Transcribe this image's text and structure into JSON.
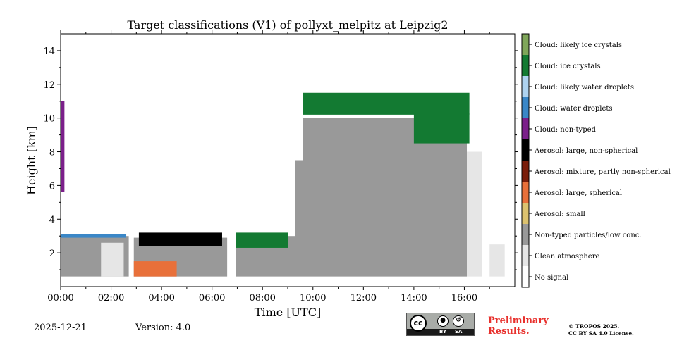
{
  "chart_data": {
    "type": "heatmap",
    "title": "Target classifications (V1) of pollyxt_melpitz at Leipzig2",
    "xlabel": "Time [UTC]",
    "ylabel": "Height [km]",
    "xlim": [
      0,
      18
    ],
    "ylim": [
      0,
      15
    ],
    "x_ticks": [
      0,
      2,
      4,
      6,
      8,
      10,
      12,
      14,
      16
    ],
    "x_tick_labels": [
      "00:00",
      "02:00",
      "04:00",
      "06:00",
      "08:00",
      "10:00",
      "12:00",
      "14:00",
      "16:00"
    ],
    "y_ticks": [
      2,
      4,
      6,
      8,
      10,
      12,
      14
    ],
    "y_tick_labels": [
      "2",
      "4",
      "6",
      "8",
      "10",
      "12",
      "14"
    ],
    "classes": [
      {
        "name": "Cloud: likely ice crystals",
        "color": "#7fa65a"
      },
      {
        "name": "Cloud: ice crystals",
        "color": "#137a32"
      },
      {
        "name": "Cloud: likely water droplets",
        "color": "#aed3f0"
      },
      {
        "name": "Cloud: water droplets",
        "color": "#3a87c7"
      },
      {
        "name": "Cloud: non-typed",
        "color": "#7b1f8a"
      },
      {
        "name": "Aerosol: large, non-spherical",
        "color": "#000000"
      },
      {
        "name": "Aerosol: mixture, partly non-spherical",
        "color": "#7a1d0a"
      },
      {
        "name": "Aerosol: large, spherical",
        "color": "#e8703a"
      },
      {
        "name": "Aerosol: small",
        "color": "#dcc26f"
      },
      {
        "name": "Non-typed particles/low conc.",
        "color": "#999999"
      },
      {
        "name": "Clean atmosphere",
        "color": "#e6e6e6"
      },
      {
        "name": "No signal",
        "color": "#ffffff"
      }
    ],
    "regions": [
      {
        "class": "Non-typed particles/low conc.",
        "t0": 0.0,
        "t1": 2.7,
        "h0": 0.6,
        "h1": 3.0
      },
      {
        "class": "Clean atmosphere",
        "t0": 1.6,
        "t1": 2.5,
        "h0": 0.6,
        "h1": 2.6
      },
      {
        "class": "Non-typed particles/low conc.",
        "t0": 2.9,
        "t1": 6.6,
        "h0": 0.6,
        "h1": 2.9
      },
      {
        "class": "Non-typed particles/low conc.",
        "t0": 6.95,
        "t1": 9.3,
        "h0": 0.6,
        "h1": 3.0
      },
      {
        "class": "Non-typed particles/low conc.",
        "t0": 9.3,
        "t1": 16.1,
        "h0": 0.6,
        "h1": 7.5
      },
      {
        "class": "Non-typed particles/low conc.",
        "t0": 9.6,
        "t1": 16.1,
        "h0": 7.5,
        "h1": 10.0
      },
      {
        "class": "Clean atmosphere",
        "t0": 16.1,
        "t1": 16.7,
        "h0": 0.6,
        "h1": 8.0
      },
      {
        "class": "Clean atmosphere",
        "t0": 17.0,
        "t1": 17.6,
        "h0": 0.6,
        "h1": 2.5
      },
      {
        "class": "Cloud: ice crystals",
        "t0": 9.6,
        "t1": 16.2,
        "h0": 10.2,
        "h1": 11.5
      },
      {
        "class": "Cloud: ice crystals",
        "t0": 14.0,
        "t1": 16.2,
        "h0": 8.5,
        "h1": 10.3
      },
      {
        "class": "Aerosol: large, non-spherical",
        "t0": 3.1,
        "t1": 6.4,
        "h0": 2.4,
        "h1": 3.2
      },
      {
        "class": "Aerosol: large, spherical",
        "t0": 2.9,
        "t1": 4.6,
        "h0": 0.6,
        "h1": 1.5
      },
      {
        "class": "Cloud: water droplets",
        "t0": 0.0,
        "t1": 2.6,
        "h0": 2.9,
        "h1": 3.1
      },
      {
        "class": "Cloud: ice crystals",
        "t0": 6.95,
        "t1": 9.0,
        "h0": 2.3,
        "h1": 3.2
      },
      {
        "class": "Cloud: non-typed",
        "t0": 0.0,
        "t1": 0.15,
        "h0": 5.6,
        "h1": 11.0
      }
    ]
  },
  "footer": {
    "date": "2025-12-21",
    "version": "Version: 4.0",
    "preliminary_line1": "Preliminary",
    "preliminary_line2": "Results.",
    "copyright_line1": "© TROPOS 2025.",
    "copyright_line2": "CC BY SA 4.0 License.",
    "license_badge": {
      "cc": "cc",
      "by": "BY",
      "sa": "SA"
    }
  }
}
